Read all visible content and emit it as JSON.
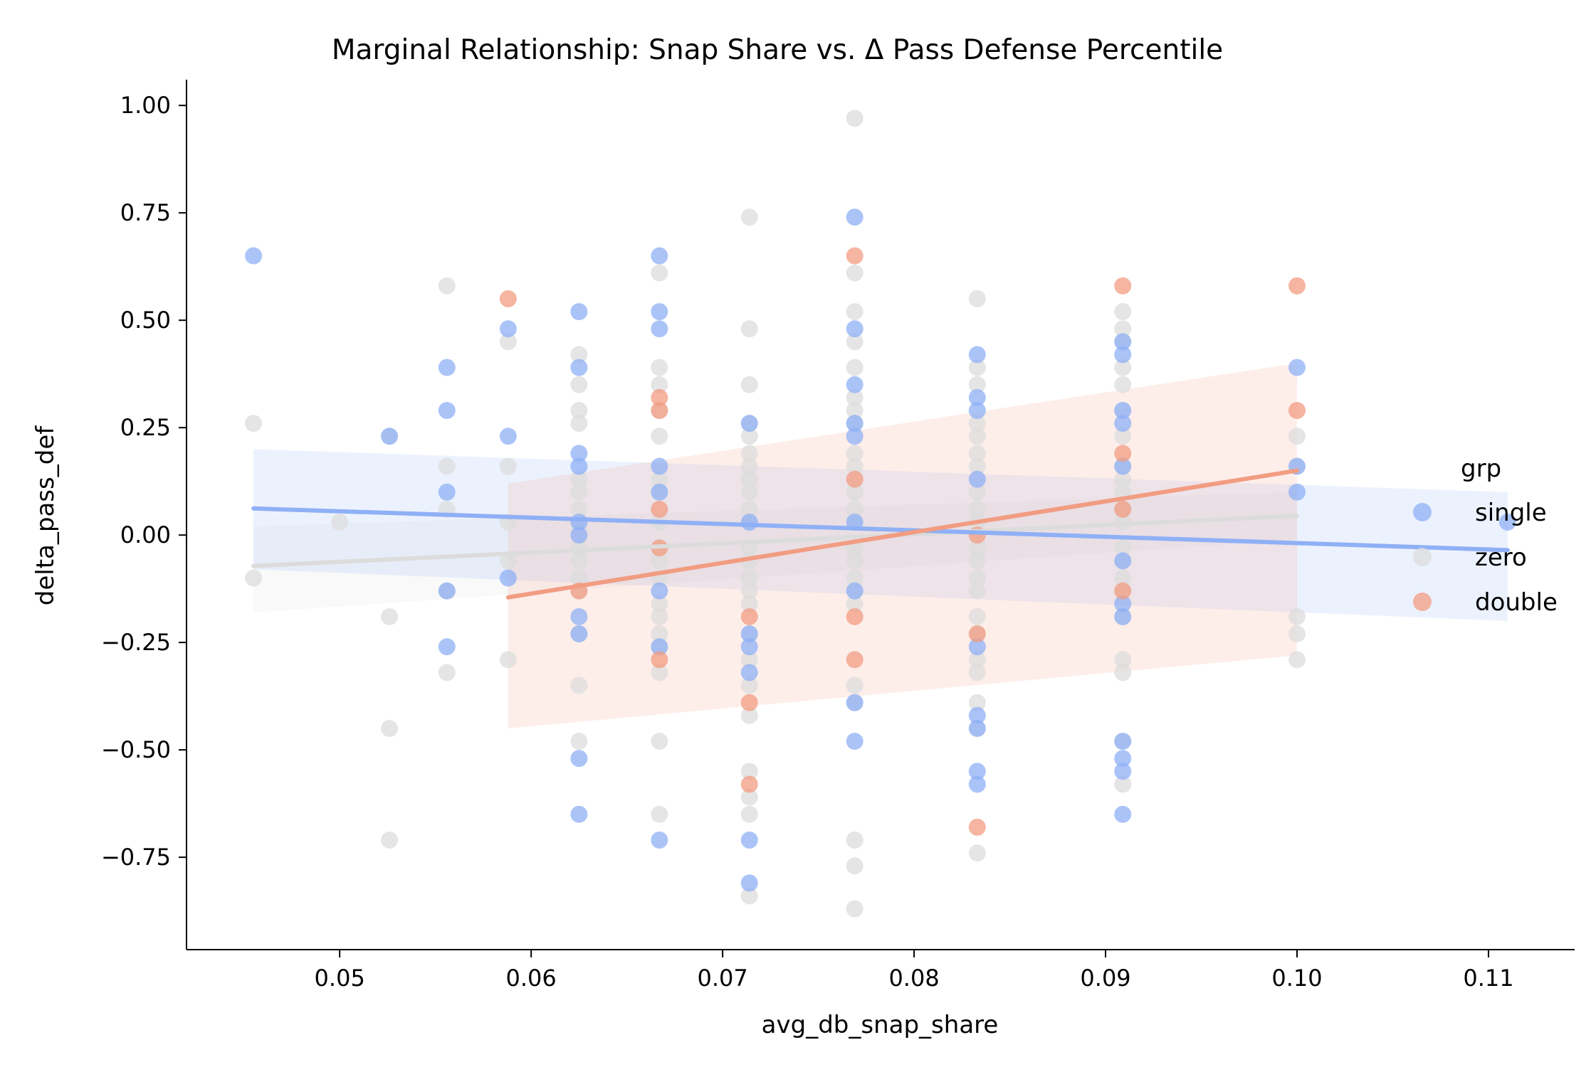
{
  "chart_data": {
    "type": "scatter",
    "title": "Marginal Relationship: Snap Share vs. Δ Pass Defense Percentile",
    "xlabel": "avg_db_snap_share",
    "ylabel": "delta_pass_def",
    "xlim": [
      0.042,
      0.1145
    ],
    "ylim": [
      -0.965,
      1.06
    ],
    "x_ticks": [
      0.05,
      0.06,
      0.07,
      0.08,
      0.09,
      0.1,
      0.11
    ],
    "x_tick_labels": [
      "0.05",
      "0.06",
      "0.07",
      "0.08",
      "0.09",
      "0.10",
      "0.11"
    ],
    "y_ticks": [
      1.0,
      0.75,
      0.5,
      0.25,
      0.0,
      -0.25,
      -0.5,
      -0.75
    ],
    "y_tick_labels": [
      "1.00",
      "0.75",
      "0.50",
      "0.25",
      "0.00",
      "−0.25",
      "−0.50",
      "−0.75"
    ],
    "grid": false,
    "legend": {
      "title": "grp",
      "position": "right"
    },
    "series": [
      {
        "name": "zero",
        "color": "#dcdcdc",
        "points": [
          [
            0.0455,
            0.26
          ],
          [
            0.0455,
            -0.1
          ],
          [
            0.05,
            0.03
          ],
          [
            0.0526,
            0.23
          ],
          [
            0.0526,
            -0.19
          ],
          [
            0.0526,
            -0.45
          ],
          [
            0.0526,
            -0.71
          ],
          [
            0.0556,
            0.58
          ],
          [
            0.0556,
            0.16
          ],
          [
            0.0556,
            0.06
          ],
          [
            0.0556,
            -0.13
          ],
          [
            0.0556,
            -0.32
          ],
          [
            0.0588,
            0.45
          ],
          [
            0.0588,
            0.16
          ],
          [
            0.0588,
            0.03
          ],
          [
            0.0588,
            -0.06
          ],
          [
            0.0588,
            -0.29
          ],
          [
            0.0625,
            0.42
          ],
          [
            0.0625,
            0.35
          ],
          [
            0.0625,
            0.29
          ],
          [
            0.0625,
            0.26
          ],
          [
            0.0625,
            0.13
          ],
          [
            0.0625,
            0.1
          ],
          [
            0.0625,
            0.06
          ],
          [
            0.0625,
            0.03
          ],
          [
            0.0625,
            -0.03
          ],
          [
            0.0625,
            -0.06
          ],
          [
            0.0625,
            -0.1
          ],
          [
            0.0625,
            -0.13
          ],
          [
            0.0625,
            -0.23
          ],
          [
            0.0625,
            -0.35
          ],
          [
            0.0625,
            -0.48
          ],
          [
            0.0667,
            0.61
          ],
          [
            0.0667,
            0.39
          ],
          [
            0.0667,
            0.35
          ],
          [
            0.0667,
            0.29
          ],
          [
            0.0667,
            0.23
          ],
          [
            0.0667,
            0.13
          ],
          [
            0.0667,
            0.1
          ],
          [
            0.0667,
            0.03
          ],
          [
            0.0667,
            -0.03
          ],
          [
            0.0667,
            -0.06
          ],
          [
            0.0667,
            -0.1
          ],
          [
            0.0667,
            -0.16
          ],
          [
            0.0667,
            -0.19
          ],
          [
            0.0667,
            -0.23
          ],
          [
            0.0667,
            -0.26
          ],
          [
            0.0667,
            -0.32
          ],
          [
            0.0667,
            -0.48
          ],
          [
            0.0667,
            -0.65
          ],
          [
            0.0714,
            0.74
          ],
          [
            0.0714,
            0.48
          ],
          [
            0.0714,
            0.35
          ],
          [
            0.0714,
            0.26
          ],
          [
            0.0714,
            0.23
          ],
          [
            0.0714,
            0.19
          ],
          [
            0.0714,
            0.16
          ],
          [
            0.0714,
            0.13
          ],
          [
            0.0714,
            0.1
          ],
          [
            0.0714,
            0.06
          ],
          [
            0.0714,
            0.03
          ],
          [
            0.0714,
            -0.03
          ],
          [
            0.0714,
            -0.06
          ],
          [
            0.0714,
            -0.1
          ],
          [
            0.0714,
            -0.13
          ],
          [
            0.0714,
            -0.16
          ],
          [
            0.0714,
            -0.23
          ],
          [
            0.0714,
            -0.29
          ],
          [
            0.0714,
            -0.35
          ],
          [
            0.0714,
            -0.42
          ],
          [
            0.0714,
            -0.55
          ],
          [
            0.0714,
            -0.61
          ],
          [
            0.0714,
            -0.65
          ],
          [
            0.0714,
            -0.84
          ],
          [
            0.0769,
            0.97
          ],
          [
            0.0769,
            0.61
          ],
          [
            0.0769,
            0.52
          ],
          [
            0.0769,
            0.45
          ],
          [
            0.0769,
            0.39
          ],
          [
            0.0769,
            0.32
          ],
          [
            0.0769,
            0.29
          ],
          [
            0.0769,
            0.26
          ],
          [
            0.0769,
            0.19
          ],
          [
            0.0769,
            0.16
          ],
          [
            0.0769,
            0.1
          ],
          [
            0.0769,
            0.06
          ],
          [
            0.0769,
            0.03
          ],
          [
            0.0769,
            -0.03
          ],
          [
            0.0769,
            -0.06
          ],
          [
            0.0769,
            -0.1
          ],
          [
            0.0769,
            -0.13
          ],
          [
            0.0769,
            -0.16
          ],
          [
            0.0769,
            -0.35
          ],
          [
            0.0769,
            -0.39
          ],
          [
            0.0769,
            -0.71
          ],
          [
            0.0769,
            -0.77
          ],
          [
            0.0769,
            -0.87
          ],
          [
            0.0833,
            0.55
          ],
          [
            0.0833,
            0.39
          ],
          [
            0.0833,
            0.35
          ],
          [
            0.0833,
            0.26
          ],
          [
            0.0833,
            0.23
          ],
          [
            0.0833,
            0.19
          ],
          [
            0.0833,
            0.16
          ],
          [
            0.0833,
            0.1
          ],
          [
            0.0833,
            0.06
          ],
          [
            0.0833,
            0.03
          ],
          [
            0.0833,
            -0.03
          ],
          [
            0.0833,
            -0.06
          ],
          [
            0.0833,
            -0.1
          ],
          [
            0.0833,
            -0.13
          ],
          [
            0.0833,
            -0.19
          ],
          [
            0.0833,
            -0.23
          ],
          [
            0.0833,
            -0.29
          ],
          [
            0.0833,
            -0.32
          ],
          [
            0.0833,
            -0.39
          ],
          [
            0.0833,
            -0.45
          ],
          [
            0.0833,
            -0.74
          ],
          [
            0.0909,
            0.52
          ],
          [
            0.0909,
            0.48
          ],
          [
            0.0909,
            0.45
          ],
          [
            0.0909,
            0.39
          ],
          [
            0.0909,
            0.35
          ],
          [
            0.0909,
            0.29
          ],
          [
            0.0909,
            0.23
          ],
          [
            0.0909,
            0.16
          ],
          [
            0.0909,
            0.13
          ],
          [
            0.0909,
            0.1
          ],
          [
            0.0909,
            0.06
          ],
          [
            0.0909,
            0.03
          ],
          [
            0.0909,
            -0.03
          ],
          [
            0.0909,
            -0.06
          ],
          [
            0.0909,
            -0.1
          ],
          [
            0.0909,
            -0.13
          ],
          [
            0.0909,
            -0.19
          ],
          [
            0.0909,
            -0.29
          ],
          [
            0.0909,
            -0.32
          ],
          [
            0.0909,
            -0.48
          ],
          [
            0.0909,
            -0.58
          ],
          [
            0.1,
            0.23
          ],
          [
            0.1,
            0.16
          ],
          [
            0.1,
            -0.19
          ],
          [
            0.1,
            -0.23
          ],
          [
            0.1,
            -0.29
          ]
        ],
        "fit": {
          "x": [
            0.0455,
            0.1
          ],
          "y": [
            -0.072,
            0.045
          ]
        },
        "ci_band": {
          "x": [
            0.0455,
            0.1
          ],
          "upper": [
            0.02,
            0.1
          ],
          "lower": [
            -0.18,
            -0.01
          ]
        }
      },
      {
        "name": "single",
        "color": "#8fb0f6",
        "points": [
          [
            0.0455,
            0.65
          ],
          [
            0.0526,
            0.23
          ],
          [
            0.0556,
            0.39
          ],
          [
            0.0556,
            0.29
          ],
          [
            0.0556,
            0.1
          ],
          [
            0.0556,
            -0.13
          ],
          [
            0.0556,
            -0.26
          ],
          [
            0.0588,
            0.48
          ],
          [
            0.0588,
            0.23
          ],
          [
            0.0588,
            -0.1
          ],
          [
            0.0625,
            0.52
          ],
          [
            0.0625,
            0.39
          ],
          [
            0.0625,
            0.19
          ],
          [
            0.0625,
            0.16
          ],
          [
            0.0625,
            0.03
          ],
          [
            0.0625,
            0.0
          ],
          [
            0.0625,
            -0.19
          ],
          [
            0.0625,
            -0.23
          ],
          [
            0.0625,
            -0.52
          ],
          [
            0.0625,
            -0.65
          ],
          [
            0.0667,
            0.65
          ],
          [
            0.0667,
            0.52
          ],
          [
            0.0667,
            0.48
          ],
          [
            0.0667,
            0.16
          ],
          [
            0.0667,
            0.1
          ],
          [
            0.0667,
            -0.13
          ],
          [
            0.0667,
            -0.26
          ],
          [
            0.0667,
            -0.71
          ],
          [
            0.0714,
            0.26
          ],
          [
            0.0714,
            0.03
          ],
          [
            0.0714,
            -0.23
          ],
          [
            0.0714,
            -0.26
          ],
          [
            0.0714,
            -0.32
          ],
          [
            0.0714,
            -0.71
          ],
          [
            0.0714,
            -0.81
          ],
          [
            0.0769,
            0.74
          ],
          [
            0.0769,
            0.48
          ],
          [
            0.0769,
            0.35
          ],
          [
            0.0769,
            0.26
          ],
          [
            0.0769,
            0.23
          ],
          [
            0.0769,
            0.03
          ],
          [
            0.0769,
            -0.13
          ],
          [
            0.0769,
            -0.39
          ],
          [
            0.0769,
            -0.48
          ],
          [
            0.0833,
            0.42
          ],
          [
            0.0833,
            0.32
          ],
          [
            0.0833,
            0.29
          ],
          [
            0.0833,
            0.13
          ],
          [
            0.0833,
            -0.26
          ],
          [
            0.0833,
            -0.42
          ],
          [
            0.0833,
            -0.45
          ],
          [
            0.0833,
            -0.55
          ],
          [
            0.0833,
            -0.58
          ],
          [
            0.0909,
            0.45
          ],
          [
            0.0909,
            0.42
          ],
          [
            0.0909,
            0.29
          ],
          [
            0.0909,
            0.26
          ],
          [
            0.0909,
            0.16
          ],
          [
            0.0909,
            -0.06
          ],
          [
            0.0909,
            -0.16
          ],
          [
            0.0909,
            -0.19
          ],
          [
            0.0909,
            -0.48
          ],
          [
            0.0909,
            -0.52
          ],
          [
            0.0909,
            -0.55
          ],
          [
            0.0909,
            -0.65
          ],
          [
            0.1,
            0.39
          ],
          [
            0.1,
            0.16
          ],
          [
            0.1,
            0.1
          ],
          [
            0.111,
            0.03
          ]
        ],
        "fit": {
          "x": [
            0.0455,
            0.111
          ],
          "y": [
            0.062,
            -0.035
          ]
        },
        "ci_band": {
          "x": [
            0.0455,
            0.111
          ],
          "upper": [
            0.2,
            0.1
          ],
          "lower": [
            -0.08,
            -0.2
          ]
        }
      },
      {
        "name": "double",
        "color": "#f29c82",
        "points": [
          [
            0.0588,
            0.55
          ],
          [
            0.0625,
            -0.13
          ],
          [
            0.0667,
            0.32
          ],
          [
            0.0667,
            0.29
          ],
          [
            0.0667,
            0.06
          ],
          [
            0.0667,
            -0.03
          ],
          [
            0.0667,
            -0.29
          ],
          [
            0.0714,
            -0.19
          ],
          [
            0.0714,
            -0.39
          ],
          [
            0.0714,
            -0.58
          ],
          [
            0.0769,
            0.65
          ],
          [
            0.0769,
            0.13
          ],
          [
            0.0769,
            -0.19
          ],
          [
            0.0769,
            -0.29
          ],
          [
            0.0833,
            0.0
          ],
          [
            0.0833,
            -0.23
          ],
          [
            0.0833,
            -0.68
          ],
          [
            0.0909,
            0.58
          ],
          [
            0.0909,
            0.19
          ],
          [
            0.0909,
            0.06
          ],
          [
            0.0909,
            -0.13
          ],
          [
            0.1,
            0.58
          ],
          [
            0.1,
            0.29
          ]
        ],
        "fit": {
          "x": [
            0.0588,
            0.1
          ],
          "y": [
            -0.145,
            0.15
          ]
        },
        "ci_band": {
          "x": [
            0.0588,
            0.1
          ],
          "upper": [
            0.12,
            0.4
          ],
          "lower": [
            -0.45,
            -0.28
          ]
        }
      }
    ]
  }
}
